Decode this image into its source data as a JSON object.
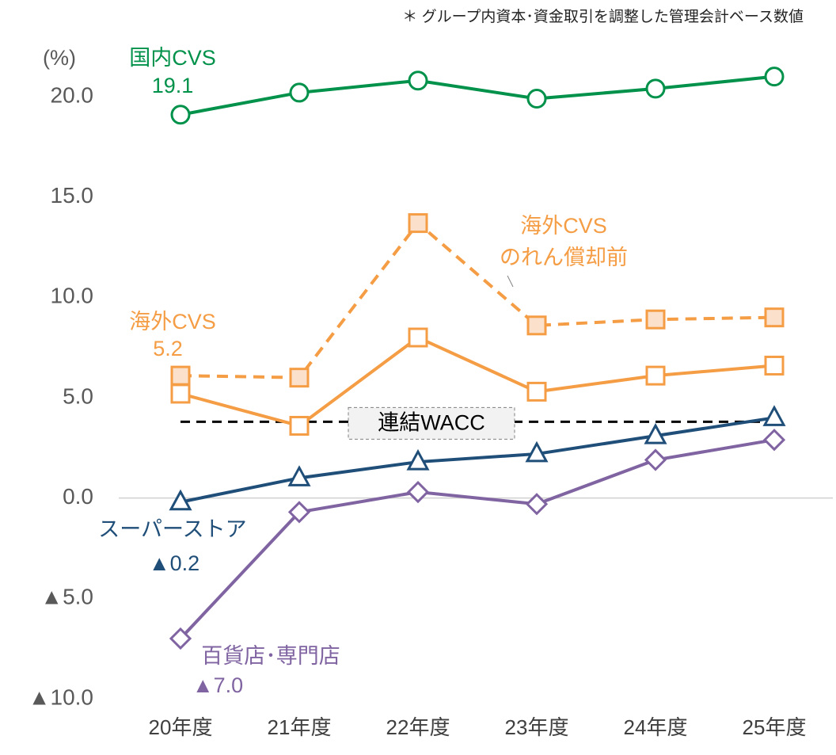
{
  "chart_data": {
    "type": "line",
    "note": "＊ グループ内資本･資金取引を調整した管理会計ベース数値",
    "y_unit": "(%)",
    "categories": [
      "20年度",
      "21年度",
      "22年度",
      "23年度",
      "24年度",
      "25年度"
    ],
    "ylim": [
      -10,
      21.5
    ],
    "yticks": [
      {
        "value": -10,
        "label": "▲10.0"
      },
      {
        "value": -5,
        "label": "▲5.0"
      },
      {
        "value": 0,
        "label": "0.0"
      },
      {
        "value": 5,
        "label": "5.0"
      },
      {
        "value": 10,
        "label": "10.0"
      },
      {
        "value": 15,
        "label": "15.0"
      },
      {
        "value": 20,
        "label": "20.0"
      }
    ],
    "zero_line": true,
    "series": [
      {
        "name": "国内CVS",
        "color": "#00914a",
        "marker": "circle",
        "dashed": false,
        "values": [
          19.1,
          20.2,
          20.8,
          19.9,
          20.4,
          21.0
        ],
        "value_labels": [
          "19.1",
          null,
          null,
          null,
          null,
          null
        ]
      },
      {
        "name": "海外CVS\nのれん償却前",
        "color": "#f59d45",
        "marker": "square-filled",
        "dashed": true,
        "values": [
          6.1,
          6.0,
          13.7,
          8.6,
          8.9,
          9.0
        ]
      },
      {
        "name": "海外CVS",
        "color": "#f59d45",
        "marker": "square",
        "dashed": false,
        "values": [
          5.2,
          3.6,
          8.0,
          5.3,
          6.1,
          6.6
        ],
        "value_labels": [
          "5.2",
          null,
          null,
          null,
          null,
          null
        ]
      },
      {
        "name": "スーパーストア",
        "color": "#1f4e79",
        "marker": "triangle",
        "dashed": false,
        "values": [
          -0.2,
          1.0,
          1.8,
          2.2,
          3.1,
          4.0
        ],
        "value_labels": [
          "▲0.2",
          null,
          null,
          null,
          null,
          null
        ]
      },
      {
        "name": "百貨店･専門店",
        "color": "#8064a2",
        "marker": "diamond",
        "dashed": false,
        "values": [
          -7.0,
          -0.7,
          0.3,
          -0.3,
          1.9,
          2.9
        ],
        "value_labels": [
          "▲7.0",
          null,
          null,
          null,
          null,
          null
        ]
      }
    ],
    "reference": {
      "name": "連結WACC",
      "value": 3.8,
      "color": "#000000"
    }
  }
}
